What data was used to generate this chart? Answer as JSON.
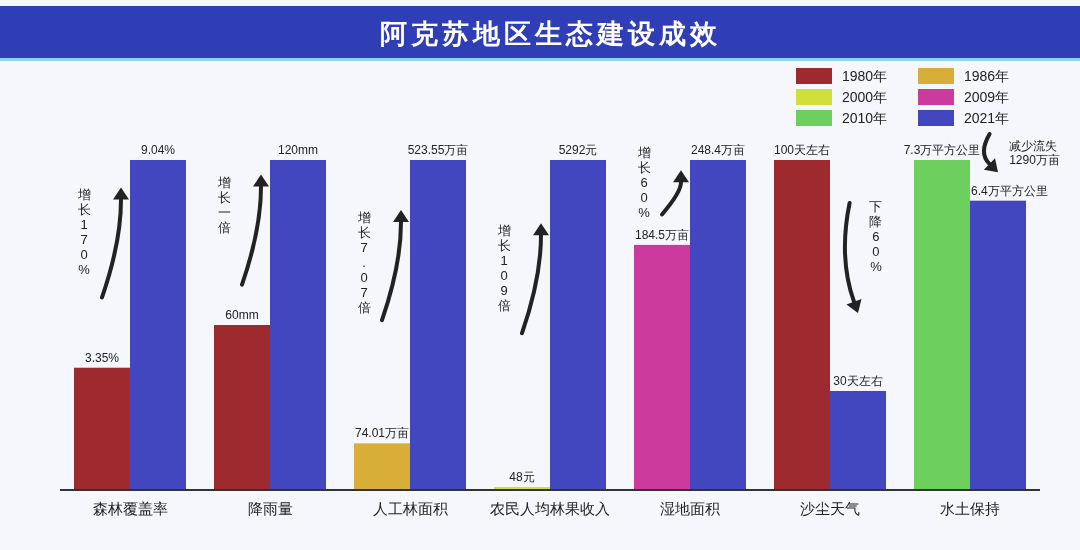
{
  "chart_data": [
    {
      "type": "bar",
      "categories": [
        "森林覆盖率"
      ],
      "tick_labels": "x",
      "series": [
        {
          "color": "#9e2a2f",
          "values": [
            3.35
          ],
          "value_labels": [
            "3.35%"
          ]
        },
        {
          "color": "#4347bf",
          "values": [
            9.04
          ],
          "value_labels": [
            "9.04%"
          ]
        }
      ],
      "annotations": [
        "增长170%"
      ]
    },
    {
      "type": "bar",
      "categories": [
        "降雨量"
      ],
      "tick_labels": "x",
      "series": [
        {
          "color": "#9e2a2f",
          "values": [
            60
          ],
          "value_labels": [
            "60mm"
          ]
        },
        {
          "color": "#4347bf",
          "values": [
            120
          ],
          "value_labels": [
            "120mm"
          ]
        }
      ],
      "annotations": [
        "增长一倍"
      ]
    },
    {
      "type": "bar",
      "categories": [
        "人工林面积"
      ],
      "tick_labels": "x",
      "series": [
        {
          "color": "#d8ad38",
          "values": [
            74.01
          ],
          "value_labels": [
            "74.01万亩"
          ]
        },
        {
          "color": "#4347bf",
          "values": [
            523.55
          ],
          "value_labels": [
            "523.55万亩"
          ]
        }
      ],
      "annotations": [
        "增长7.07倍"
      ]
    },
    {
      "type": "bar",
      "title": "阿克苏地区生态建设成效",
      "categories": [
        "农民人均林果收入"
      ],
      "tick_labels": "x",
      "series": [
        {
          "color": "#cfe03a",
          "values": [
            48
          ],
          "value_labels": [
            "48元"
          ]
        },
        {
          "color": "#4347bf",
          "values": [
            5292
          ],
          "value_labels": [
            "5292元"
          ]
        }
      ],
      "annotations": [
        "增长109倍"
      ]
    },
    {
      "type": "bar",
      "categories": [
        "湿地面积"
      ],
      "tick_labels": "x",
      "series": [
        {
          "color": "#cc3a9e",
          "values": [
            184.5
          ],
          "value_labels": [
            "184.5万亩"
          ]
        },
        {
          "color": "#4347bf",
          "values": [
            248.4
          ],
          "value_labels": [
            "248.4万亩"
          ]
        }
      ],
      "annotations": [
        "增长60%"
      ]
    },
    {
      "type": "bar",
      "categories": [
        "沙尘天气"
      ],
      "tick_labels": "x",
      "legend": "top right",
      "series": [
        {
          "name": "1980年",
          "color": "#9e2a2f",
          "values": [
            100
          ],
          "value_labels": [
            "100天左右"
          ]
        },
        {
          "name": "1986年",
          "color": "#d8ad38",
          "values": [
            null
          ]
        },
        {
          "name": "2000年",
          "color": "#cfe03a",
          "values": [
            null
          ]
        },
        {
          "name": "2009年",
          "color": "#cc3a9e",
          "values": [
            null
          ]
        },
        {
          "name": "2010年",
          "color": "#6ccf5e",
          "values": [
            null
          ]
        },
        {
          "name": "2021年",
          "color": "#4347bf",
          "values": [
            30
          ],
          "value_labels": [
            "30天左右"
          ]
        }
      ],
      "annotations": [
        "下降60%"
      ]
    },
    {
      "type": "bar",
      "categories": [
        "水土保持"
      ],
      "tick_labels": "x",
      "series": [
        {
          "color": "#6ccf5e",
          "values": [
            7.3
          ],
          "value_labels": [
            "7.3万平方公里"
          ]
        },
        {
          "color": "#4347bf",
          "values": [
            6.4
          ],
          "value_labels": [
            "6.4万平方公里"
          ]
        }
      ],
      "annotations": [
        "减少流失\n1290万亩"
      ]
    }
  ]
}
